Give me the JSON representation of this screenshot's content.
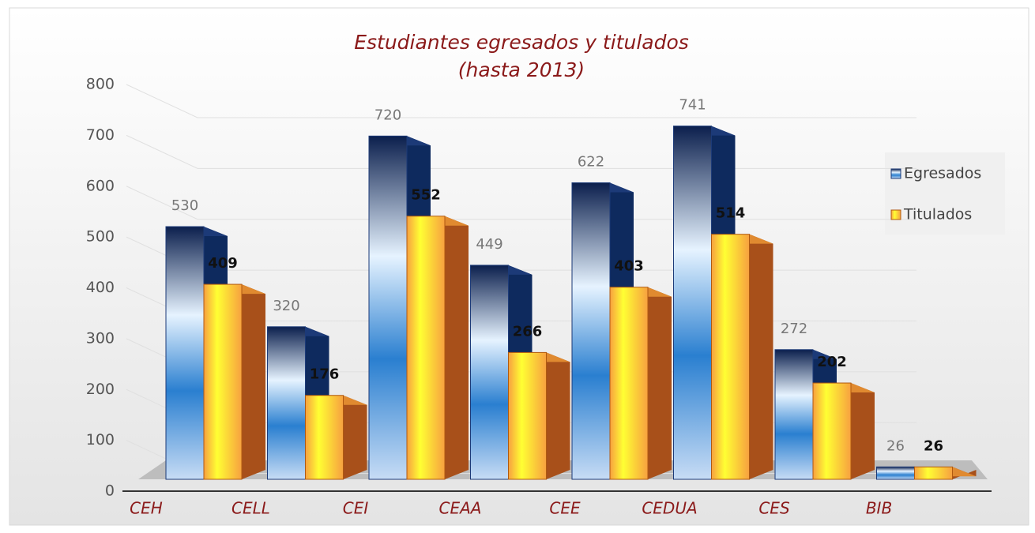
{
  "chart_data": {
    "type": "bar",
    "title": "Estudiantes egresados y titulados",
    "subtitle": "(hasta 2013)",
    "categories": [
      "CEH",
      "CELL",
      "CEI",
      "CEAA",
      "CEE",
      "CEDUA",
      "CES",
      "BIB"
    ],
    "series": [
      {
        "name": "Egresados",
        "color": "#2a7fd0",
        "values": [
          530,
          320,
          720,
          449,
          622,
          741,
          272,
          26
        ]
      },
      {
        "name": "Titulados",
        "color": "#f7a040",
        "values": [
          409,
          176,
          552,
          266,
          403,
          514,
          202,
          26
        ]
      }
    ],
    "ylim": [
      0,
      800
    ],
    "yticks": [
      0,
      100,
      200,
      300,
      400,
      500,
      600,
      700,
      800
    ],
    "grid": true,
    "legend": "right"
  }
}
